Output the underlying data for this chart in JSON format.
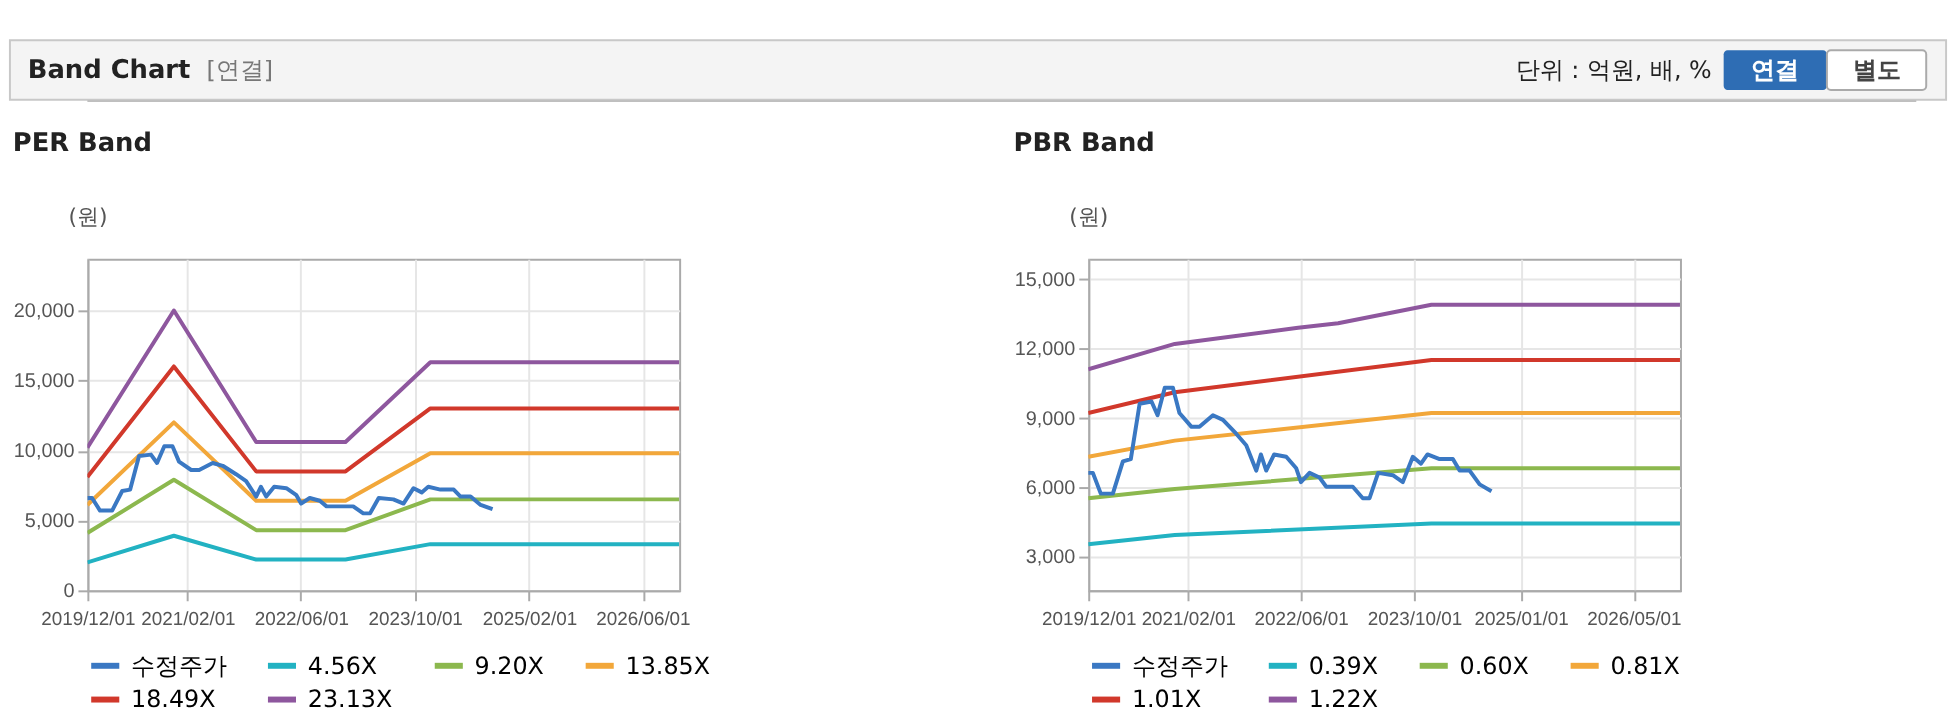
{
  "chart_data": [
    {
      "type": "line",
      "title": "PER Band",
      "ylabel": "(원)",
      "annotations": [
        "Band Chart",
        "[연결]",
        "단위 : 억원, 배, %",
        "연결",
        "별도"
      ],
      "x": [
        "2019-12-01",
        "2020-12-05",
        "2021-11-22",
        "2022-12-09",
        "2023-12-07",
        "2026-11-05"
      ],
      "series": [
        {
          "name": "수정주가",
          "color": "#3a78c3",
          "x": [
            "2019-12-01",
            "2019-12-21",
            "2020-01-24",
            "2020-03-16",
            "2020-04-28",
            "2020-06-01",
            "2020-07-09",
            "2020-08-29",
            "2020-09-24",
            "2020-10-25",
            "2020-11-29",
            "2020-12-27",
            "2021-02-17",
            "2021-03-23",
            "2021-05-20",
            "2021-07-02",
            "2021-08-28",
            "2021-10-10",
            "2021-11-22",
            "2021-12-12",
            "2022-01-04",
            "2022-02-07",
            "2022-03-31",
            "2022-05-13",
            "2022-06-02",
            "2022-07-09",
            "2022-08-21",
            "2022-09-19",
            "2023-01-11",
            "2023-02-23",
            "2023-03-24",
            "2023-04-30",
            "2023-07-02",
            "2023-08-14",
            "2023-09-26",
            "2023-10-31",
            "2023-11-28",
            "2024-01-19",
            "2024-03-16",
            "2024-04-14",
            "2024-05-27",
            "2024-07-09",
            "2024-08-29"
          ],
          "values": [
            6600,
            6600,
            5700,
            5700,
            7100,
            7200,
            9600,
            9700,
            9100,
            10300,
            10300,
            9200,
            8600,
            8600,
            9100,
            8900,
            8300,
            7800,
            6700,
            7400,
            6700,
            7400,
            7300,
            6800,
            6200,
            6600,
            6400,
            6000,
            6000,
            5500,
            5500,
            6600,
            6500,
            6200,
            7300,
            7000,
            7400,
            7200,
            7200,
            6700,
            6700,
            6100,
            5800
          ]
        },
        {
          "name": "4.56X",
          "color": "#22b2c2",
          "values": [
            2000,
            3900,
            2200,
            2200,
            3300,
            3300
          ]
        },
        {
          "name": "9.20X",
          "color": "#8cb84e",
          "values": [
            4100,
            7900,
            4300,
            4300,
            6500,
            6500
          ]
        },
        {
          "name": "13.85X",
          "color": "#f2a73a",
          "values": [
            6100,
            12000,
            6400,
            6400,
            9800,
            9800
          ]
        },
        {
          "name": "18.49X",
          "color": "#d1382b",
          "values": [
            8100,
            16000,
            8500,
            8500,
            13000,
            13000
          ]
        },
        {
          "name": "23.13X",
          "color": "#8e579e",
          "values": [
            10200,
            20000,
            10600,
            10600,
            16300,
            16300
          ]
        }
      ],
      "xlim": [
        "2019-12-01",
        "2026-11-05"
      ],
      "xticks": [
        {
          "value": "2019-12-01",
          "label": "2019/12/01"
        },
        {
          "value": "2021-02-01",
          "label": "2021/02/01"
        },
        {
          "value": "2022-06-01",
          "label": "2022/06/01"
        },
        {
          "value": "2023-10-01",
          "label": "2023/10/01"
        },
        {
          "value": "2025-02-01",
          "label": "2025/02/01"
        },
        {
          "value": "2026-06-01",
          "label": "2026/06/01"
        }
      ],
      "ylim": [
        0,
        23700
      ],
      "yticks": [
        0,
        {
          "value": 5000,
          "label": "5,000"
        },
        {
          "value": 10000,
          "label": "10,000"
        },
        {
          "value": 15000,
          "label": "15,000"
        },
        {
          "value": 20000,
          "label": "20,000"
        }
      ],
      "grid": true,
      "legend": "bottom"
    },
    {
      "type": "line",
      "title": "PBR Band",
      "ylabel": "(원)",
      "x": [
        "2019-12-01",
        "2020-12-07",
        "2023-12-15",
        "2026-11-17"
      ],
      "series": [
        {
          "name": "수정주가",
          "color": "#3a78c3",
          "x": [
            "2019-12-01",
            "2019-12-21",
            "2020-01-24",
            "2020-03-16",
            "2020-04-28",
            "2020-06-01",
            "2020-07-09",
            "2020-08-29",
            "2020-09-24",
            "2020-10-25",
            "2020-11-29",
            "2020-12-27",
            "2021-02-17",
            "2021-03-23",
            "2021-05-20",
            "2021-07-02",
            "2021-08-28",
            "2021-10-10",
            "2021-11-22",
            "2021-12-12",
            "2022-01-04",
            "2022-02-07",
            "2022-03-31",
            "2022-05-13",
            "2022-06-02",
            "2022-07-09",
            "2022-08-21",
            "2022-09-19",
            "2023-01-11",
            "2023-02-23",
            "2023-03-24",
            "2023-04-30",
            "2023-07-02",
            "2023-08-14",
            "2023-09-26",
            "2023-10-31",
            "2023-11-28",
            "2024-01-19",
            "2024-03-16",
            "2024-04-14",
            "2024-05-27",
            "2024-07-09",
            "2024-08-29"
          ],
          "values": [
            6600,
            6600,
            5700,
            5700,
            7100,
            7200,
            9600,
            9700,
            9100,
            10300,
            10300,
            9200,
            8600,
            8600,
            9100,
            8900,
            8300,
            7800,
            6700,
            7400,
            6700,
            7400,
            7300,
            6800,
            6200,
            6600,
            6400,
            6000,
            6000,
            5500,
            5500,
            6600,
            6500,
            6200,
            7300,
            7000,
            7400,
            7200,
            7200,
            6700,
            6700,
            6100,
            5800
          ]
        },
        {
          "name": "0.39X",
          "color": "#22b2c2",
          "values": [
            3500,
            3900,
            4400,
            4400
          ]
        },
        {
          "name": "0.60X",
          "color": "#8cb84e",
          "values": [
            5500,
            5900,
            6800,
            6800
          ]
        },
        {
          "name": "0.81X",
          "color": "#f2a73a",
          "values": [
            7300,
            8000,
            9200,
            9200
          ]
        },
        {
          "name": "1.01X",
          "color": "#d1382b",
          "values": [
            9200,
            10100,
            11500,
            11500
          ]
        },
        {
          "name": "1.22X",
          "color": "#8e579e",
          "x": [
            "2019-12-01",
            "2020-12-07",
            "2022-05-21",
            "2022-11-09",
            "2023-12-15",
            "2026-11-17"
          ],
          "values": [
            11100,
            12200,
            12900,
            13100,
            13900,
            13900
          ]
        }
      ],
      "xlim": [
        "2019-12-01",
        "2026-11-17"
      ],
      "xticks": [
        {
          "value": "2019-12-01",
          "label": "2019/12/01"
        },
        {
          "value": "2021-02-01",
          "label": "2021/02/01"
        },
        {
          "value": "2022-06-01",
          "label": "2022/06/01"
        },
        {
          "value": "2023-10-01",
          "label": "2023/10/01"
        },
        {
          "value": "2025-01-01",
          "label": "2025/01/01"
        },
        {
          "value": "2026-05-01",
          "label": "2026/05/01"
        }
      ],
      "ylim": [
        1500,
        15900
      ],
      "yticks": [
        {
          "value": 3000,
          "label": "3,000"
        },
        {
          "value": 6000,
          "label": "6,000"
        },
        {
          "value": 9000,
          "label": "9,000"
        },
        {
          "value": 12000,
          "label": "12,000"
        },
        {
          "value": 15000,
          "label": "15,000"
        }
      ],
      "grid": true,
      "legend": "bottom"
    }
  ]
}
